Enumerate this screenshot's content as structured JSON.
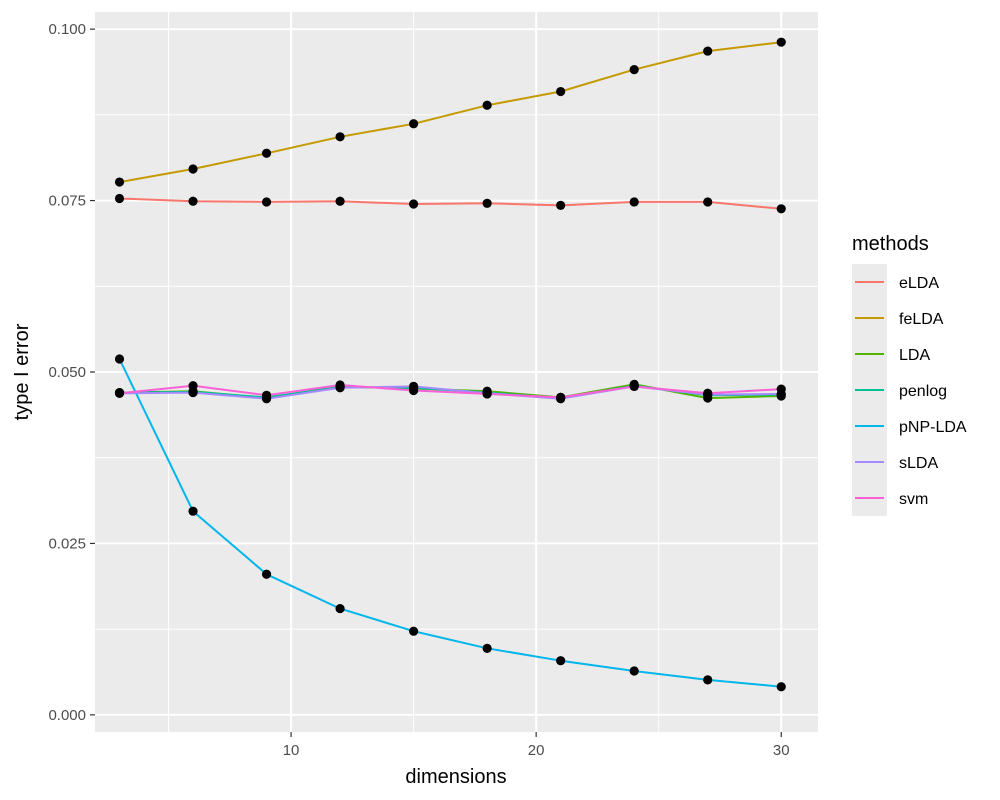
{
  "chart_data": {
    "type": "line",
    "xlabel": "dimensions",
    "ylabel": "type I error",
    "xlim": [
      2,
      31.5
    ],
    "ylim": [
      -0.0025,
      0.1025
    ],
    "x_ticks": [
      10,
      20,
      30
    ],
    "x_tick_labels": [
      "10",
      "20",
      "30"
    ],
    "y_ticks": [
      0,
      0.025,
      0.05,
      0.075,
      0.1
    ],
    "y_tick_labels": [
      "0.000",
      "0.025",
      "0.050",
      "0.075",
      "0.100"
    ],
    "grid": true,
    "legend_title": "methods",
    "legend_position": "right",
    "x": [
      3,
      6,
      9,
      12,
      15,
      18,
      21,
      24,
      27,
      30
    ],
    "point_color": "#000000",
    "panel_background": "#ebebeb",
    "series": [
      {
        "name": "eLDA",
        "color": "#F8766D",
        "values": [
          0.0753,
          0.0749,
          0.0748,
          0.0749,
          0.0745,
          0.0746,
          0.0743,
          0.0748,
          0.0748,
          0.0738
        ]
      },
      {
        "name": "feLDA",
        "color": "#C49A00",
        "values": [
          0.0777,
          0.0796,
          0.0819,
          0.0843,
          0.0862,
          0.0889,
          0.0909,
          0.0941,
          0.0968,
          0.0981
        ]
      },
      {
        "name": "LDA",
        "color": "#53B400",
        "values": [
          0.047,
          0.0472,
          0.0462,
          0.0479,
          0.0476,
          0.0472,
          0.0463,
          0.0482,
          0.0462,
          0.0465
        ]
      },
      {
        "name": "penlog",
        "color": "#00C094",
        "values": [
          0.047,
          0.0471,
          0.0463,
          0.0478,
          0.0477,
          0.047,
          0.0462,
          0.048,
          0.0466,
          0.0467
        ]
      },
      {
        "name": "pNP-LDA",
        "color": "#00B6EB",
        "values": [
          0.0519,
          0.0297,
          0.0205,
          0.0155,
          0.0122,
          0.0097,
          0.0079,
          0.0064,
          0.0051,
          0.0041
        ]
      },
      {
        "name": "sLDA",
        "color": "#A58AFF",
        "values": [
          0.0469,
          0.047,
          0.0461,
          0.0477,
          0.0479,
          0.0469,
          0.0461,
          0.0479,
          0.0467,
          0.0468
        ]
      },
      {
        "name": "svm",
        "color": "#FB61D7",
        "values": [
          0.0469,
          0.048,
          0.0466,
          0.0481,
          0.0473,
          0.0468,
          0.0463,
          0.0479,
          0.0469,
          0.0475
        ]
      }
    ]
  }
}
